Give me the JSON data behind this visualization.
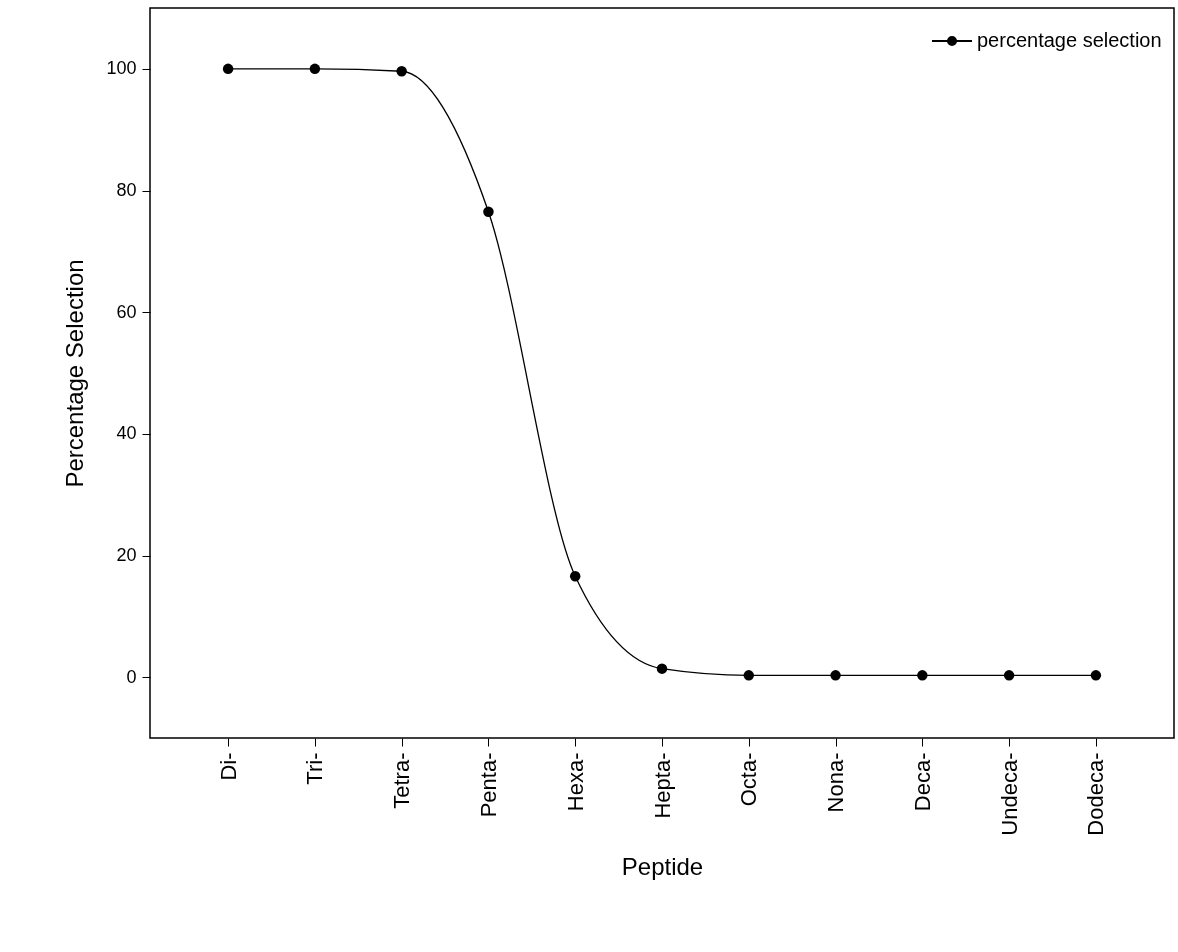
{
  "chart_data": {
    "type": "line",
    "xlabel": "Peptide",
    "ylabel": "Percentage Selection",
    "categories": [
      "Di-",
      "Tri-",
      "Tetra-",
      "Penta-",
      "Hexa-",
      "Hepta-",
      "Octa-",
      "Nona-",
      "Deca-",
      "Undeca-",
      "Dodeca-"
    ],
    "series": [
      {
        "name": "percentage selection",
        "color": "#000000",
        "values": [
          100,
          100,
          99.6,
          76.5,
          16.6,
          1.4,
          0.3,
          0.3,
          0.3,
          0.3,
          0.3
        ]
      }
    ],
    "ylim": [
      -10,
      110
    ],
    "yticks": [
      0,
      20,
      40,
      60,
      80,
      100
    ],
    "grid": false,
    "legend": "top right",
    "marker": "circle",
    "line_style": "solid"
  }
}
